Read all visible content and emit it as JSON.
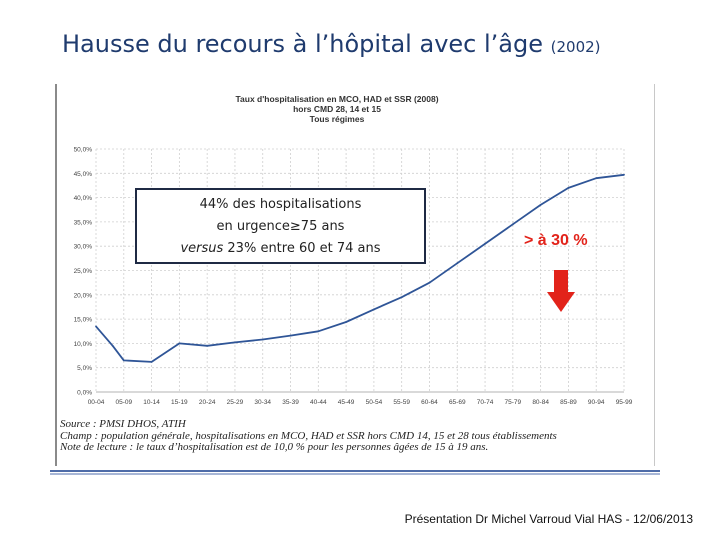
{
  "slide": {
    "title_main": "Hausse du recours à l’hôpital avec l’âge",
    "title_year": "(2002)",
    "footer": "Présentation Dr Michel Varroud Vial HAS - 12/06/2013"
  },
  "note": {
    "line1": "44% des hospitalisations",
    "line2": "en urgence≥75 ans",
    "line3_italic": "versus",
    "line3_rest": " 23% entre 60 et 74 ans"
  },
  "callout": {
    "text": "> à 30 %",
    "color": "#e2231a"
  },
  "source": {
    "line1": "Source : PMSI DHOS, ATIH",
    "line2": "Champ : population générale, hospitalisations en MCO, HAD et SSR hors CMD 14, 15 et 28 tous établissements",
    "line3": "Note de lecture : le taux d’hospitalisation est de 10,0 % pour les personnes âgées de 15 à 19 ans."
  },
  "chart_data": {
    "type": "line",
    "title": "Taux d'hospitalisation en MCO, HAD et SSR (2008)",
    "subtitle_lines": [
      "hors CMD 28, 14 et 15",
      "Tous régimes"
    ],
    "xlabel": "",
    "ylabel": "",
    "x_tick_labels": [
      "00-04",
      "05-09",
      "10-14",
      "15-19",
      "20-24",
      "25-29",
      "30-34",
      "35-39",
      "40-44",
      "45-49",
      "50-54",
      "55-59",
      "60-64",
      "65-69",
      "70-74",
      "75-79",
      "80-84",
      "85-89",
      "90-94",
      "95-99"
    ],
    "y_tick_labels": [
      "0,0%",
      "5,0%",
      "10,0%",
      "15,0%",
      "20,0%",
      "25,0%",
      "30,0%",
      "35,0%",
      "40,0%",
      "45,0%",
      "50,0%"
    ],
    "ylim": [
      0,
      50
    ],
    "grid": true,
    "line_color": "#2f5597",
    "series": [
      {
        "x": [
          0,
          0.6,
          1,
          2,
          3,
          4,
          5,
          6,
          7,
          8,
          9,
          10,
          11,
          12,
          13,
          14,
          15,
          16,
          17,
          18,
          19
        ],
        "values": [
          13.5,
          9.5,
          6.5,
          6.2,
          10.0,
          9.5,
          10.2,
          10.8,
          11.6,
          12.5,
          14.4,
          17.0,
          19.5,
          22.5,
          26.5,
          30.5,
          34.5,
          38.5,
          42.0,
          44.0,
          44.7
        ]
      }
    ]
  }
}
